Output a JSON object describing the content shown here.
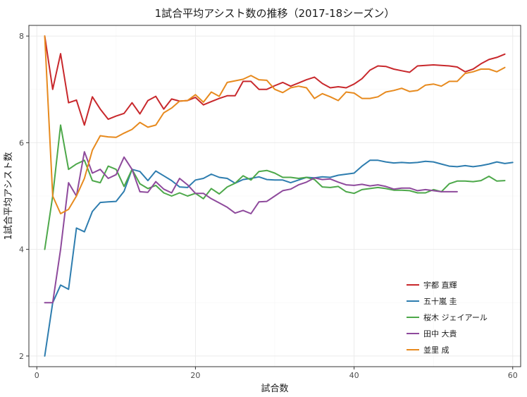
{
  "chart_data": {
    "type": "line",
    "title": "1試合平均アシスト数の推移（2017-18シーズン）",
    "xlabel": "試合数",
    "ylabel": "1試合平均アシスト数",
    "xlim": [
      -1,
      61
    ],
    "ylim": [
      1.8,
      8.2
    ],
    "x_ticks": [
      0,
      20,
      40,
      60
    ],
    "y_ticks": [
      2,
      4,
      6,
      8
    ],
    "x_minor": [
      10,
      30,
      50
    ],
    "y_minor": [
      3,
      5,
      7
    ],
    "grid": true,
    "legend_position": "bottom-right",
    "series": [
      {
        "name": "宇都 直輝",
        "color": "#C8282C",
        "x": [
          1,
          2,
          3,
          4,
          5,
          6,
          7,
          8,
          9,
          10,
          11,
          12,
          13,
          14,
          15,
          16,
          17,
          18,
          19,
          20,
          21,
          22,
          23,
          24,
          25,
          26,
          27,
          28,
          29,
          30,
          31,
          32,
          33,
          34,
          35,
          36,
          37,
          38,
          39,
          40,
          41,
          42,
          43,
          44,
          45,
          46,
          47,
          48,
          49,
          50,
          51,
          52,
          53,
          54,
          55,
          56,
          57,
          58,
          59
        ],
        "y": [
          8.0,
          7.0,
          7.67,
          6.75,
          6.8,
          6.33,
          6.86,
          6.63,
          6.44,
          6.5,
          6.55,
          6.75,
          6.54,
          6.79,
          6.87,
          6.63,
          6.82,
          6.78,
          6.79,
          6.85,
          6.71,
          6.77,
          6.83,
          6.88,
          6.88,
          7.15,
          7.15,
          7.0,
          7.0,
          7.07,
          7.13,
          7.06,
          7.12,
          7.18,
          7.23,
          7.11,
          7.03,
          7.05,
          7.03,
          7.1,
          7.2,
          7.36,
          7.44,
          7.43,
          7.38,
          7.35,
          7.32,
          7.44,
          7.45,
          7.46,
          7.45,
          7.44,
          7.42,
          7.33,
          7.38,
          7.48,
          7.56,
          7.6,
          7.66
        ]
      },
      {
        "name": "五十嵐 圭",
        "color": "#2E7DAF",
        "x": [
          1,
          2,
          3,
          4,
          5,
          6,
          7,
          8,
          9,
          10,
          11,
          12,
          13,
          14,
          15,
          16,
          17,
          18,
          19,
          20,
          21,
          22,
          23,
          24,
          25,
          26,
          27,
          28,
          29,
          30,
          31,
          32,
          33,
          34,
          35,
          36,
          37,
          38,
          39,
          40,
          41,
          42,
          43,
          44,
          45,
          46,
          47,
          48,
          49,
          50,
          51,
          52,
          53,
          54,
          55,
          56,
          57,
          58,
          59,
          60
        ],
        "y": [
          2.0,
          3.0,
          3.33,
          3.25,
          4.4,
          4.33,
          4.71,
          4.88,
          4.89,
          4.9,
          5.09,
          5.5,
          5.46,
          5.29,
          5.47,
          5.38,
          5.29,
          5.17,
          5.16,
          5.3,
          5.33,
          5.41,
          5.35,
          5.33,
          5.24,
          5.31,
          5.33,
          5.36,
          5.31,
          5.3,
          5.3,
          5.25,
          5.3,
          5.35,
          5.34,
          5.36,
          5.35,
          5.39,
          5.41,
          5.43,
          5.56,
          5.67,
          5.67,
          5.64,
          5.62,
          5.63,
          5.62,
          5.63,
          5.65,
          5.64,
          5.6,
          5.56,
          5.55,
          5.57,
          5.55,
          5.57,
          5.6,
          5.64,
          5.61,
          5.63
        ]
      },
      {
        "name": "桜木 ジェイアール",
        "color": "#4DA84A",
        "x": [
          1,
          2,
          3,
          4,
          5,
          6,
          7,
          8,
          9,
          10,
          11,
          12,
          13,
          14,
          15,
          16,
          17,
          18,
          19,
          20,
          21,
          22,
          23,
          24,
          25,
          26,
          27,
          28,
          29,
          30,
          31,
          32,
          33,
          34,
          35,
          36,
          37,
          38,
          39,
          40,
          41,
          42,
          43,
          44,
          45,
          46,
          47,
          48,
          49,
          50,
          51,
          52,
          53,
          54,
          55,
          56,
          57,
          58,
          59
        ],
        "y": [
          4.0,
          5.0,
          6.33,
          5.5,
          5.6,
          5.67,
          5.29,
          5.25,
          5.56,
          5.5,
          5.18,
          5.5,
          5.23,
          5.14,
          5.2,
          5.06,
          5.0,
          5.06,
          5.0,
          5.05,
          4.95,
          5.14,
          5.04,
          5.17,
          5.24,
          5.38,
          5.3,
          5.46,
          5.48,
          5.43,
          5.35,
          5.35,
          5.33,
          5.35,
          5.31,
          5.17,
          5.16,
          5.18,
          5.08,
          5.05,
          5.12,
          5.14,
          5.16,
          5.14,
          5.11,
          5.11,
          5.1,
          5.06,
          5.06,
          5.12,
          5.08,
          5.23,
          5.28,
          5.28,
          5.27,
          5.29,
          5.37,
          5.28,
          5.29
        ]
      },
      {
        "name": "田中 大貴",
        "color": "#8E4A9C",
        "x": [
          1,
          2,
          3,
          4,
          5,
          6,
          7,
          8,
          9,
          10,
          11,
          12,
          13,
          14,
          15,
          16,
          17,
          18,
          19,
          20,
          21,
          22,
          23,
          24,
          25,
          26,
          27,
          28,
          29,
          30,
          31,
          32,
          33,
          34,
          35,
          36,
          37,
          38,
          39,
          40,
          41,
          42,
          43,
          44,
          45,
          46,
          47,
          48,
          49,
          50,
          51,
          52,
          53
        ],
        "y": [
          3.0,
          3.0,
          4.0,
          5.25,
          5.0,
          5.83,
          5.43,
          5.5,
          5.33,
          5.4,
          5.73,
          5.5,
          5.08,
          5.07,
          5.27,
          5.13,
          5.06,
          5.33,
          5.21,
          5.05,
          5.05,
          4.95,
          4.87,
          4.79,
          4.68,
          4.73,
          4.67,
          4.89,
          4.9,
          5.0,
          5.1,
          5.13,
          5.21,
          5.26,
          5.34,
          5.31,
          5.32,
          5.26,
          5.21,
          5.2,
          5.22,
          5.19,
          5.21,
          5.18,
          5.13,
          5.15,
          5.15,
          5.1,
          5.12,
          5.1,
          5.08,
          5.08,
          5.08
        ]
      },
      {
        "name": "並里 成",
        "color": "#E78A1E",
        "x": [
          1,
          2,
          3,
          4,
          5,
          6,
          7,
          8,
          9,
          10,
          11,
          12,
          13,
          14,
          15,
          16,
          17,
          18,
          19,
          20,
          21,
          22,
          23,
          24,
          25,
          26,
          27,
          28,
          29,
          30,
          31,
          32,
          33,
          34,
          35,
          36,
          37,
          38,
          39,
          40,
          41,
          42,
          43,
          44,
          45,
          46,
          47,
          48,
          49,
          50,
          51,
          52,
          53,
          54,
          55,
          56,
          57,
          58,
          59
        ],
        "y": [
          8.0,
          5.0,
          4.67,
          4.75,
          5.0,
          5.33,
          5.86,
          6.13,
          6.11,
          6.1,
          6.18,
          6.25,
          6.38,
          6.29,
          6.33,
          6.56,
          6.65,
          6.78,
          6.79,
          6.9,
          6.76,
          6.95,
          6.87,
          7.13,
          7.16,
          7.19,
          7.26,
          7.18,
          7.17,
          7.0,
          6.94,
          7.03,
          7.06,
          7.03,
          6.83,
          6.92,
          6.86,
          6.79,
          6.95,
          6.93,
          6.83,
          6.83,
          6.86,
          6.95,
          6.98,
          7.02,
          6.96,
          6.98,
          7.08,
          7.1,
          7.06,
          7.15,
          7.15,
          7.3,
          7.33,
          7.38,
          7.38,
          7.33,
          7.41
        ]
      }
    ]
  }
}
